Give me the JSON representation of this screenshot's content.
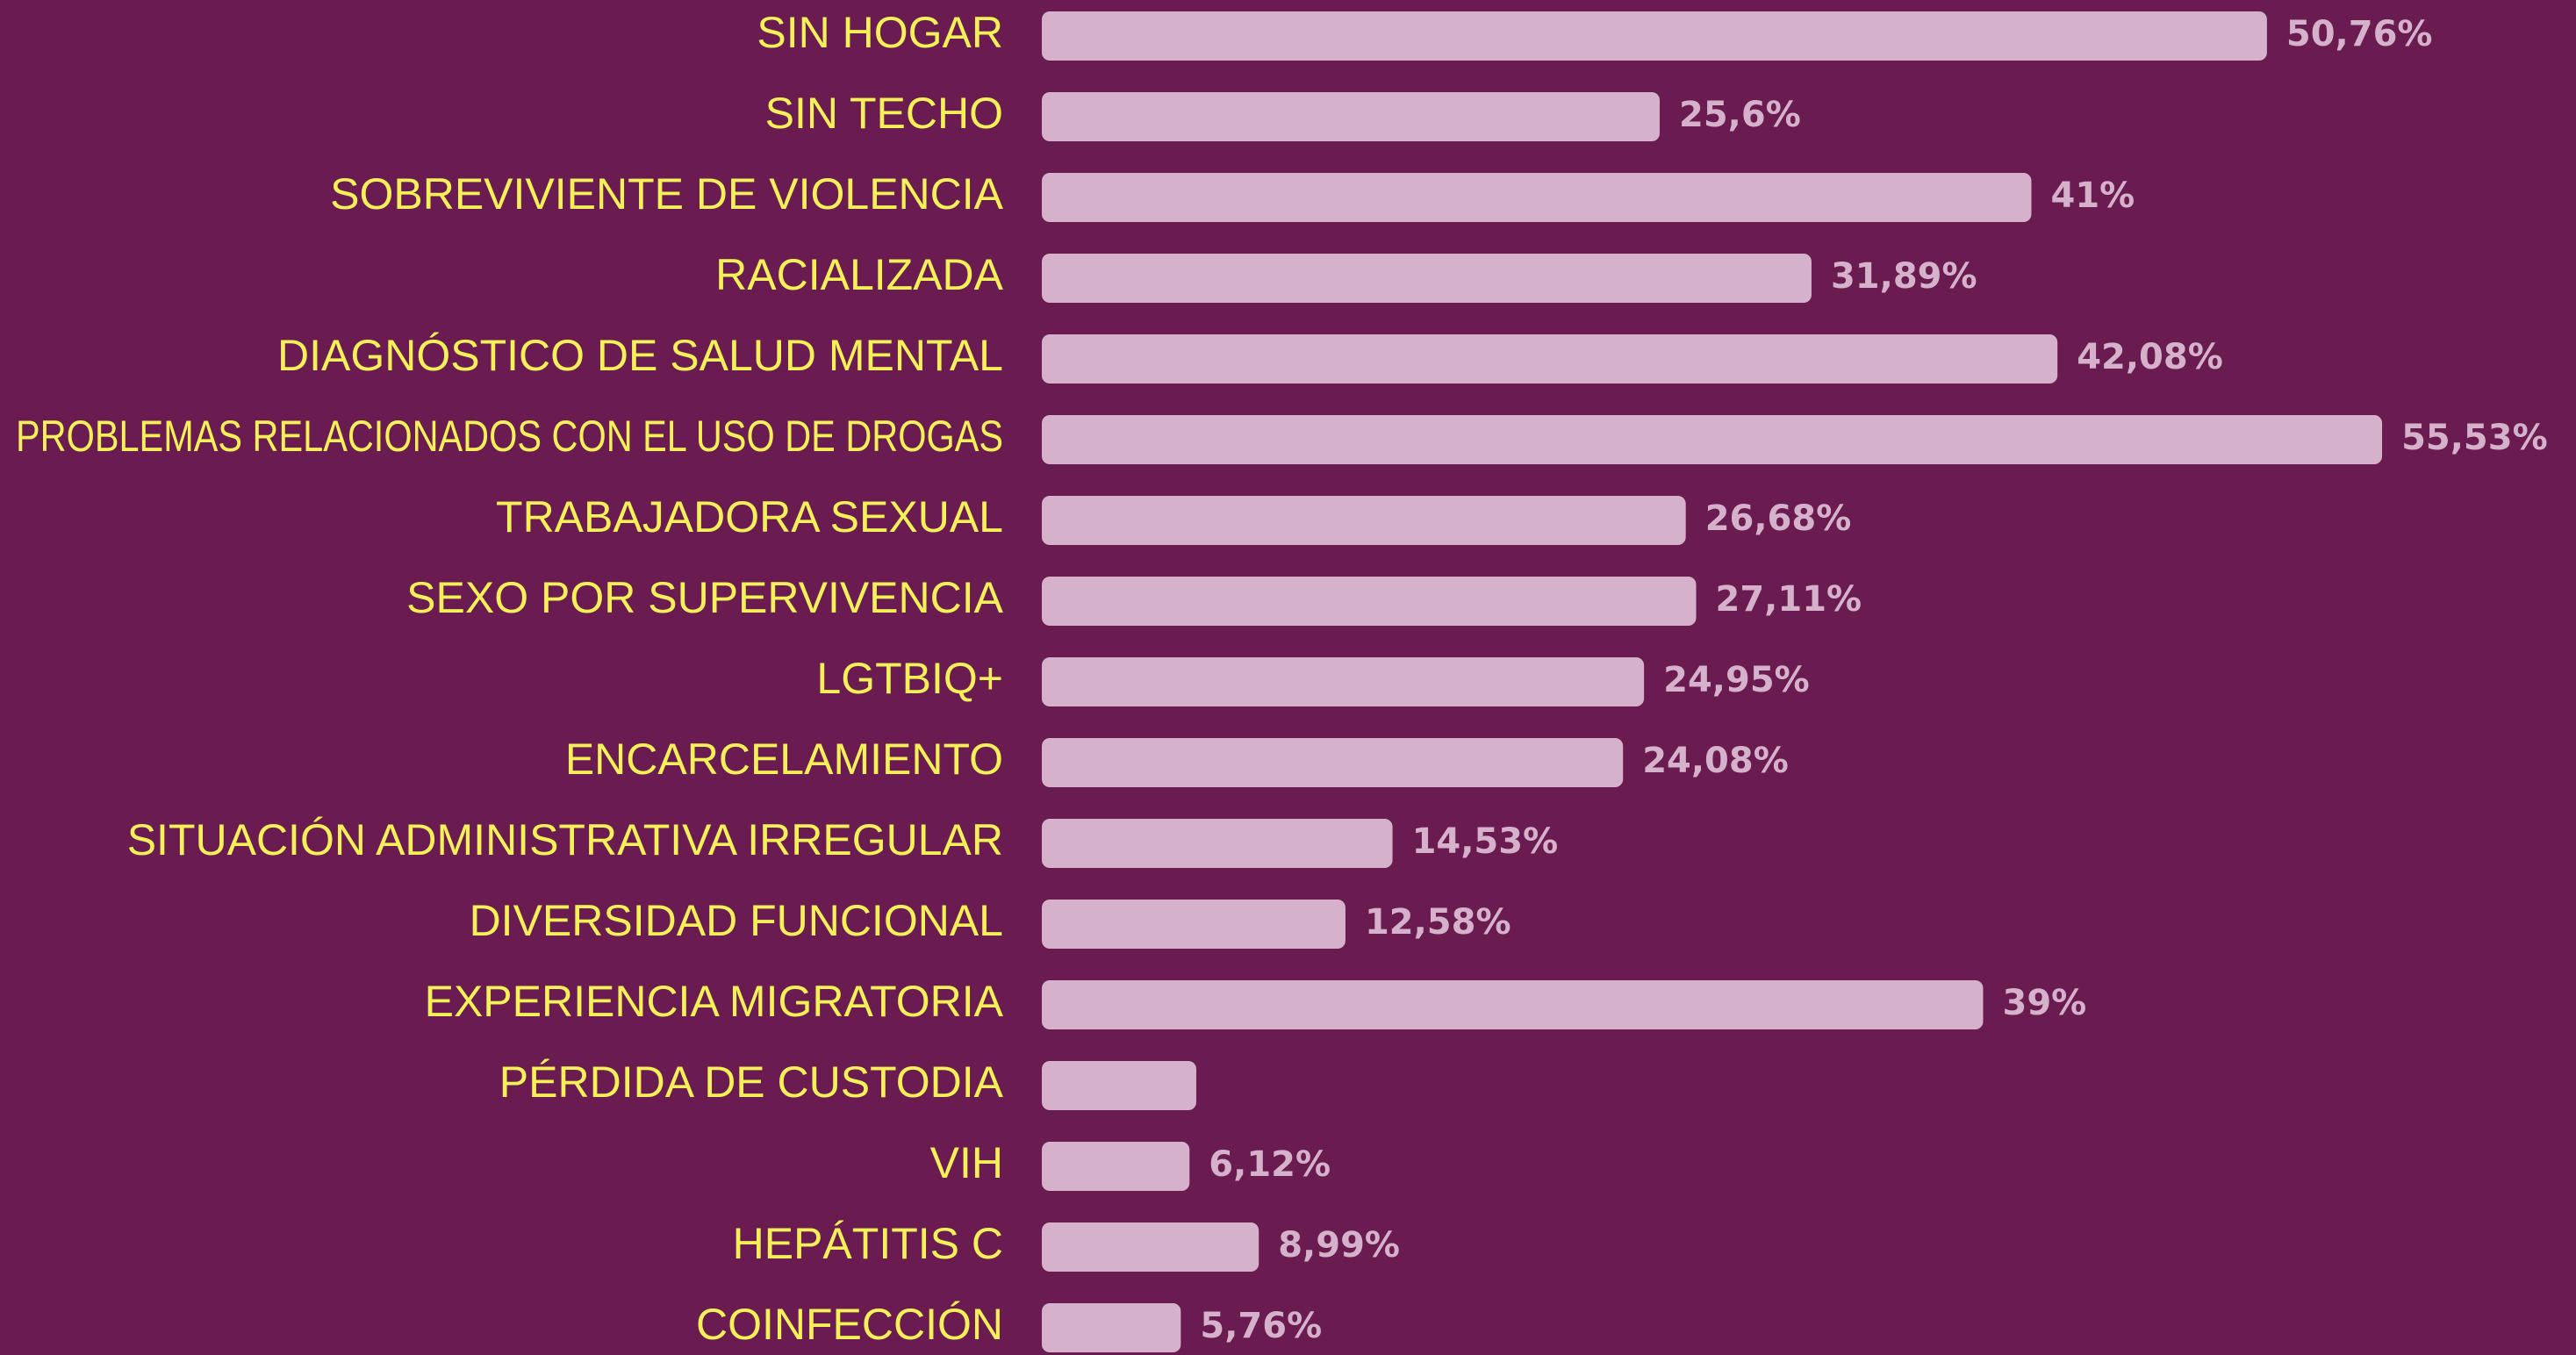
{
  "chart_data": {
    "type": "barh",
    "categories": [
      "SIN HOGAR",
      "SIN TECHO",
      "SOBREVIVIENTE DE VIOLENCIA",
      "RACIALIZADA",
      "DIAGNÓSTICO DE SALUD MENTAL",
      "PROBLEMAS RELACIONADOS CON EL USO DE DROGAS",
      "TRABAJADORA SEXUAL",
      "SEXO POR SUPERVIVENCIA",
      "LGTBIQ+",
      "ENCARCELAMIENTO",
      "SITUACIÓN ADMINISTRATIVA IRREGULAR",
      "DIVERSIDAD FUNCIONAL",
      "EXPERIENCIA MIGRATORIA",
      "PÉRDIDA DE CUSTODIA",
      "VIH",
      "HEPÁTITIS C",
      "COINFECCIÓN"
    ],
    "values": [
      50.76,
      25.6,
      41,
      31.89,
      42.08,
      55.53,
      26.68,
      27.11,
      24.95,
      24.08,
      14.53,
      12.58,
      39,
      6.4,
      6.12,
      8.99,
      5.76
    ],
    "value_labels": [
      "50,76%",
      "25,6%",
      "41%",
      "31,89%",
      "42,08%",
      "55,53%",
      "26,68%",
      "27,11%",
      "24,95%",
      "24,08%",
      "14,53%",
      "12,58%",
      "39%",
      null,
      "6,12%",
      "8,99%",
      "5,76%"
    ],
    "color": "#d5b1cb"
  }
}
